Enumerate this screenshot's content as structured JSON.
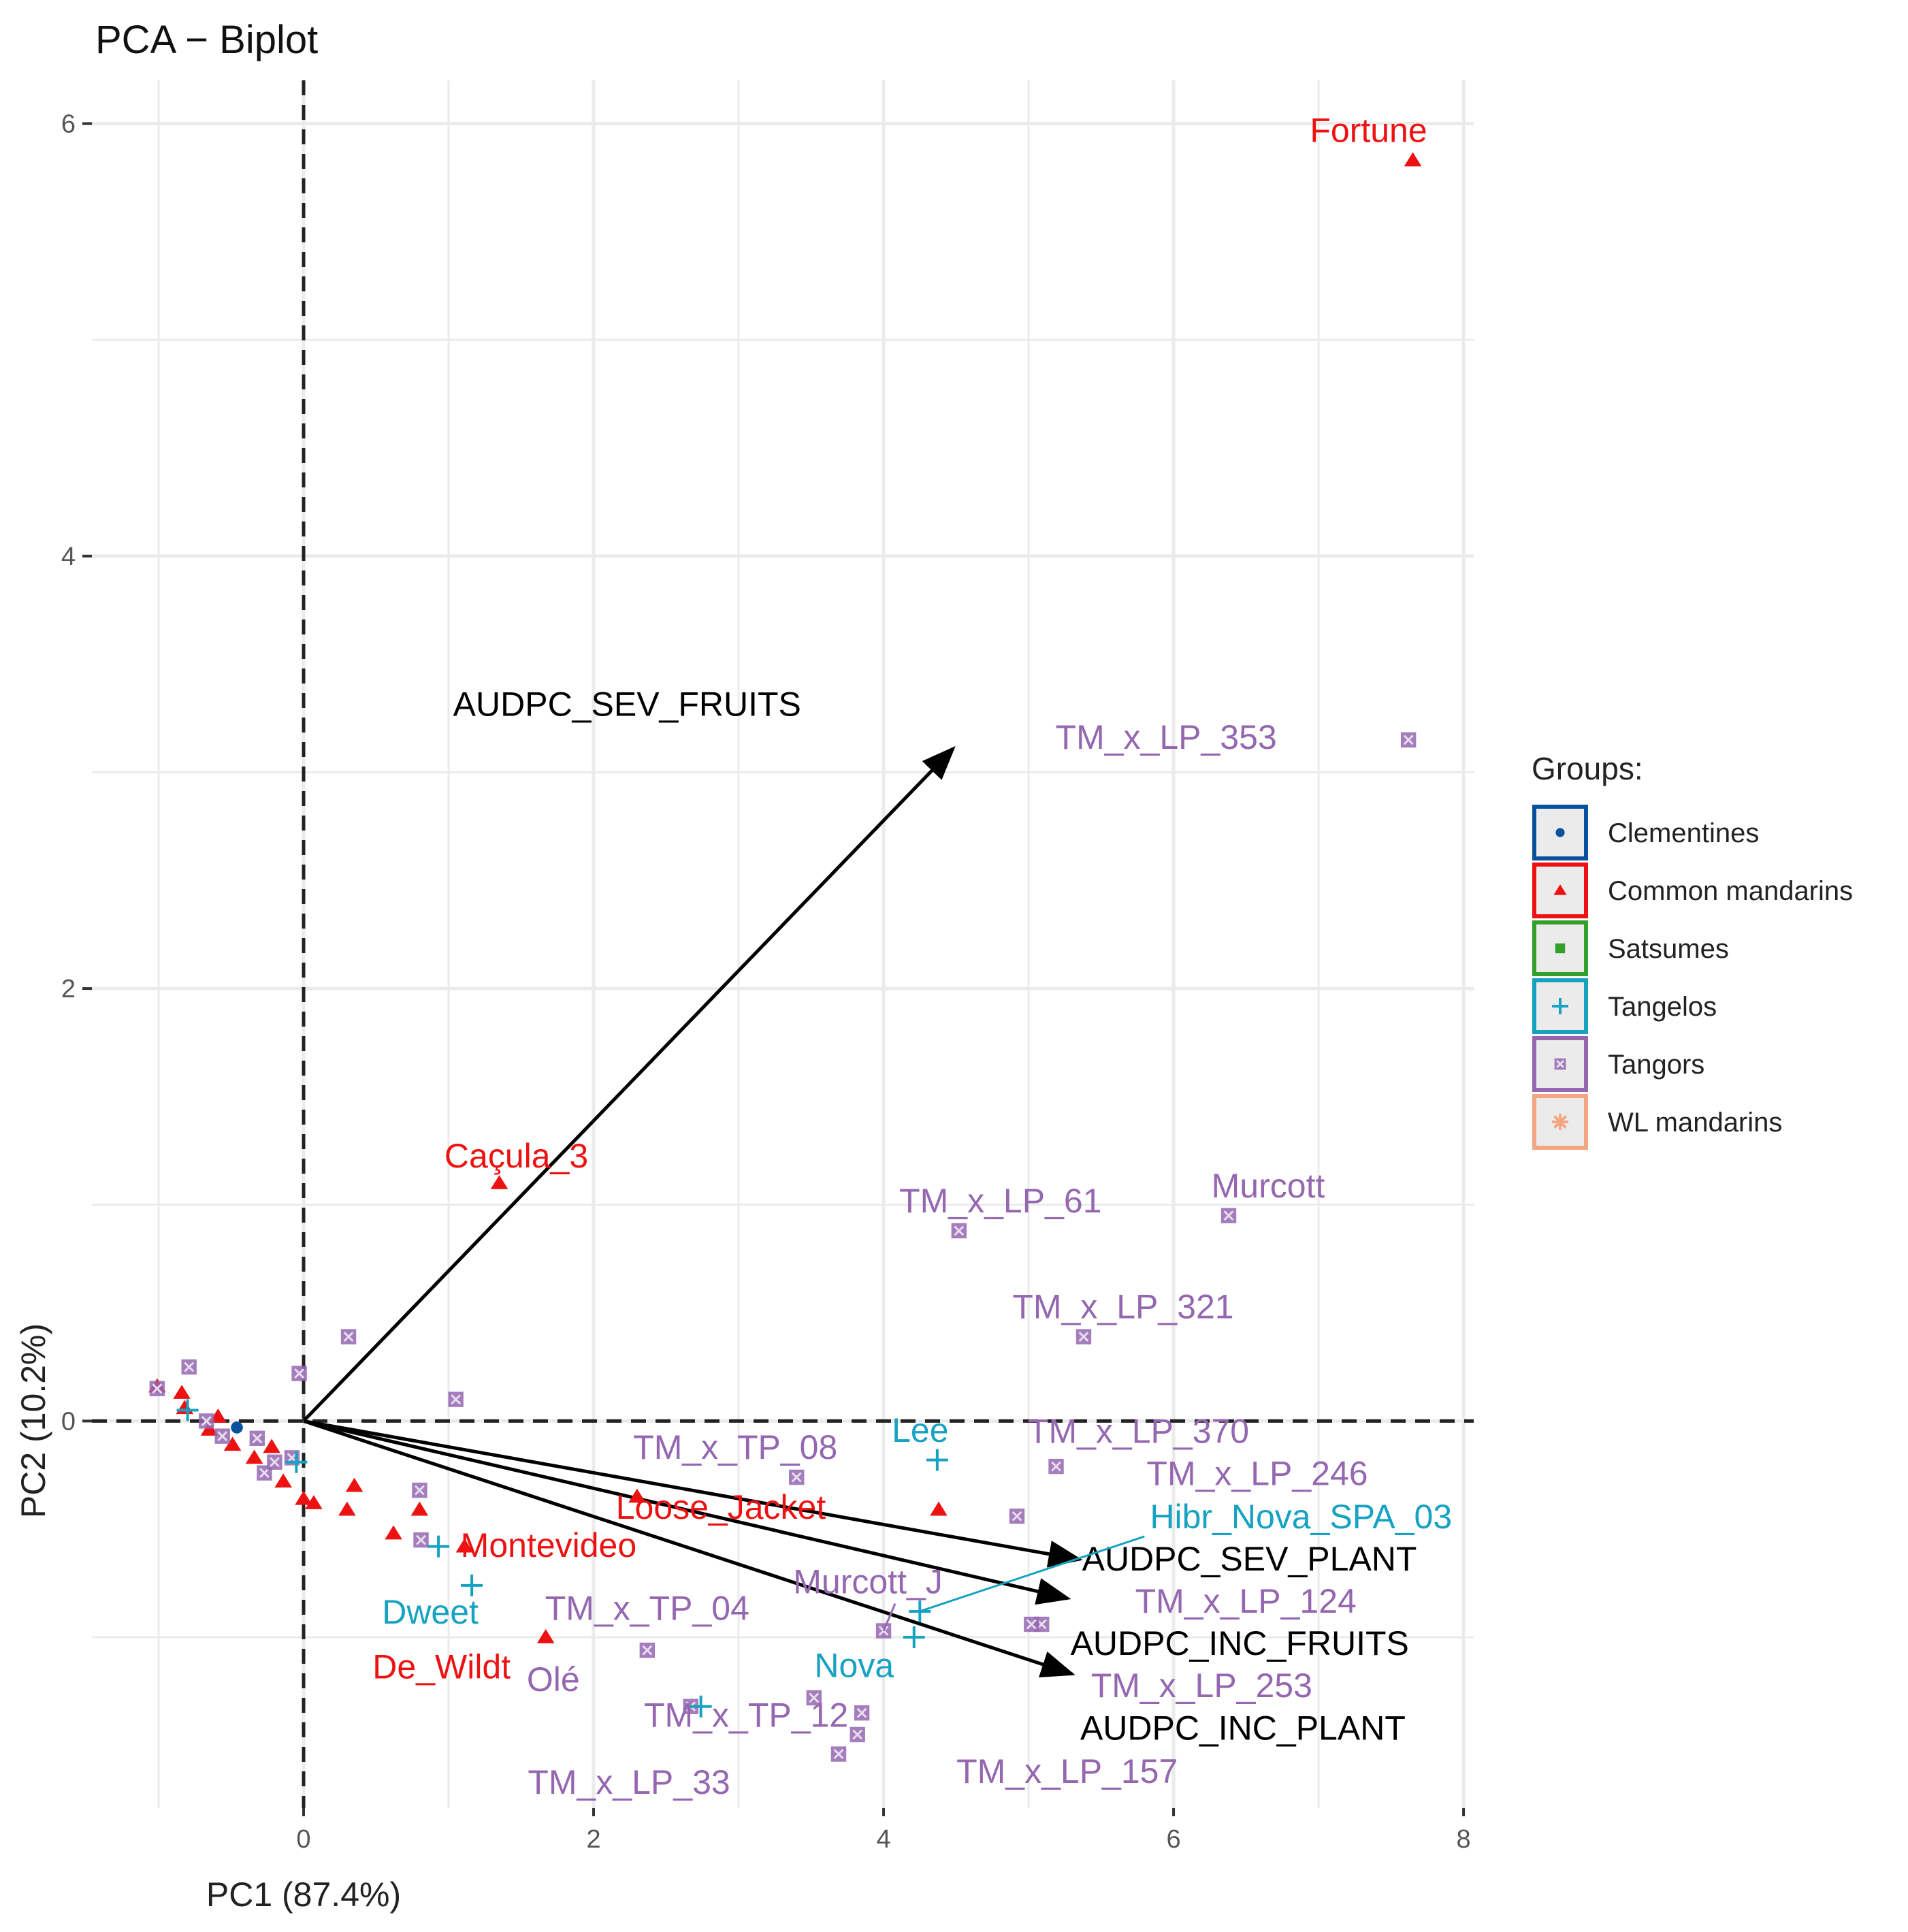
{
  "chart_data": {
    "type": "scatter",
    "title": "PCA − Biplot",
    "xlabel": "PC1 (87.4%)",
    "ylabel": "PC2 (10.2%)",
    "xlim": [
      -1.46,
      8.07
    ],
    "ylim": [
      -1.79,
      6.2
    ],
    "x_ticks": [
      0,
      2,
      4,
      6,
      8
    ],
    "y_ticks": [
      0,
      2,
      4,
      6
    ],
    "grid": true,
    "reference_lines": {
      "x": 0,
      "y": 0,
      "style": "dashed"
    },
    "legend": {
      "title": "Groups:",
      "placement": "right",
      "entries": [
        {
          "name": "Clementines",
          "color": "#08519c",
          "shape": "circle"
        },
        {
          "name": "Common mandarins",
          "color": "#ee1111",
          "shape": "triangle"
        },
        {
          "name": "Satsumes",
          "color": "#33a02c",
          "shape": "square"
        },
        {
          "name": "Tangelos",
          "color": "#17a2c2",
          "shape": "plus"
        },
        {
          "name": "Tangors",
          "color": "#9467b0",
          "shape": "square-cross"
        },
        {
          "name": "WL mandarins",
          "color": "#f4a582",
          "shape": "asterisk"
        }
      ]
    },
    "points": [
      {
        "label": "Fortune",
        "group": "Common mandarins",
        "x": 7.65,
        "y": 5.83
      },
      {
        "label": "TM_x_LP_353",
        "group": "Tangors",
        "x": 7.62,
        "y": 3.15
      },
      {
        "label": "Caçula_3",
        "group": "Common mandarins",
        "x": 1.35,
        "y": 1.1
      },
      {
        "label": "TM_x_LP_61",
        "group": "Tangors",
        "x": 4.52,
        "y": 0.88
      },
      {
        "label": "Murcott",
        "group": "Tangors",
        "x": 6.38,
        "y": 0.95
      },
      {
        "label": "TM_x_LP_321",
        "group": "Tangors",
        "x": 5.38,
        "y": 0.39
      },
      {
        "label": "TM_x_TP_08",
        "group": "Tangors",
        "x": 3.4,
        "y": -0.26
      },
      {
        "label": "Lee",
        "group": "Tangelos",
        "x": 4.37,
        "y": -0.18
      },
      {
        "label": "TM_x_LP_370",
        "group": "Tangors",
        "x": 5.19,
        "y": -0.21
      },
      {
        "label": "Loose_Jacket",
        "group": "Common mandarins",
        "x": 4.38,
        "y": -0.41
      },
      {
        "label": "TM_x_LP_246",
        "group": "Tangors",
        "x": 4.92,
        "y": -0.44
      },
      {
        "label": "Hibr_Nova_SPA_03",
        "group": "Tangelos",
        "x": 4.25,
        "y": -0.88
      },
      {
        "label": "Montevideo",
        "group": "Common mandarins",
        "x": 2.3,
        "y": -0.35
      },
      {
        "label": "Murcott_J",
        "group": "Tangors",
        "x": 4.0,
        "y": -0.97
      },
      {
        "label": "TM_x_LP_124",
        "group": "Tangors",
        "x": 5.09,
        "y": -0.94
      },
      {
        "label": "TM_x_LP_253",
        "group": "Tangors",
        "x": 5.02,
        "y": -0.94
      },
      {
        "label": "Dweet",
        "group": "Tangelos",
        "x": 1.16,
        "y": -0.76
      },
      {
        "label": "TM_x_TP_04",
        "group": "Tangors",
        "x": 2.37,
        "y": -1.06
      },
      {
        "label": "De_Wildt",
        "group": "Common mandarins",
        "x": 1.67,
        "y": -1.0
      },
      {
        "label": "Olé",
        "group": "Tangors",
        "x": 2.67,
        "y": -1.32
      },
      {
        "label": "Nova",
        "group": "Tangelos",
        "x": 4.21,
        "y": -1.0
      },
      {
        "label": "TM_x_TP_12",
        "group": "Tangors",
        "x": 3.85,
        "y": -1.35
      },
      {
        "label": "TM_x_LP_33",
        "group": "Tangors",
        "x": 3.69,
        "y": -1.54
      },
      {
        "label": "TM_x_LP_157",
        "group": "Tangors",
        "x": 3.82,
        "y": -1.45
      },
      {
        "label": "",
        "group": "Tangors",
        "x": 3.52,
        "y": -1.28
      },
      {
        "label": "",
        "group": "Tangelos",
        "x": 2.74,
        "y": -1.32
      },
      {
        "label": "",
        "group": "Common mandarins",
        "x": 1.11,
        "y": -0.58
      },
      {
        "label": "",
        "group": "Common mandarins",
        "x": 0.8,
        "y": -0.41
      },
      {
        "label": "",
        "group": "Common mandarins",
        "x": 0.62,
        "y": -0.52
      },
      {
        "label": "",
        "group": "Common mandarins",
        "x": 0.35,
        "y": -0.3
      },
      {
        "label": "",
        "group": "Common mandarins",
        "x": 0.3,
        "y": -0.41
      },
      {
        "label": "",
        "group": "Common mandarins",
        "x": 0.07,
        "y": -0.38
      },
      {
        "label": "",
        "group": "Common mandarins",
        "x": 0.0,
        "y": -0.36
      },
      {
        "label": "",
        "group": "Common mandarins",
        "x": -0.14,
        "y": -0.28
      },
      {
        "label": "",
        "group": "Common mandarins",
        "x": -0.34,
        "y": -0.17
      },
      {
        "label": "",
        "group": "Common mandarins",
        "x": -0.22,
        "y": -0.12
      },
      {
        "label": "",
        "group": "Common mandarins",
        "x": -0.49,
        "y": -0.11
      },
      {
        "label": "",
        "group": "Common mandarins",
        "x": -0.59,
        "y": 0.02
      },
      {
        "label": "",
        "group": "Common mandarins",
        "x": -0.65,
        "y": -0.04
      },
      {
        "label": "",
        "group": "Common mandarins",
        "x": -0.84,
        "y": 0.13
      },
      {
        "label": "",
        "group": "Common mandarins",
        "x": -1.01,
        "y": 0.16
      },
      {
        "label": "",
        "group": "Common mandarins",
        "x": -0.82,
        "y": 0.06
      },
      {
        "label": "",
        "group": "Tangors",
        "x": 0.31,
        "y": 0.39
      },
      {
        "label": "",
        "group": "Tangors",
        "x": -0.03,
        "y": 0.22
      },
      {
        "label": "",
        "group": "Tangors",
        "x": 1.05,
        "y": 0.1
      },
      {
        "label": "",
        "group": "Tangors",
        "x": -0.79,
        "y": 0.25
      },
      {
        "label": "",
        "group": "Tangors",
        "x": 0.8,
        "y": -0.32
      },
      {
        "label": "",
        "group": "Tangors",
        "x": 0.81,
        "y": -0.55
      },
      {
        "label": "",
        "group": "Tangors",
        "x": -0.32,
        "y": -0.08
      },
      {
        "label": "",
        "group": "Tangors",
        "x": -0.08,
        "y": -0.17
      },
      {
        "label": "",
        "group": "Tangors",
        "x": -0.27,
        "y": -0.24
      },
      {
        "label": "",
        "group": "Tangors",
        "x": -0.67,
        "y": 0.0
      },
      {
        "label": "",
        "group": "Tangors",
        "x": -1.01,
        "y": 0.15
      },
      {
        "label": "",
        "group": "Tangors",
        "x": -0.56,
        "y": -0.07
      },
      {
        "label": "",
        "group": "Tangors",
        "x": -0.2,
        "y": -0.19
      },
      {
        "label": "",
        "group": "Tangelos",
        "x": 0.93,
        "y": -0.58
      },
      {
        "label": "",
        "group": "Tangelos",
        "x": -0.05,
        "y": -0.19
      },
      {
        "label": "",
        "group": "Tangelos",
        "x": -0.8,
        "y": 0.05
      },
      {
        "label": "",
        "group": "Clementines",
        "x": -0.46,
        "y": -0.03
      }
    ],
    "variables": [
      {
        "name": "AUDPC_SEV_FRUITS",
        "x": 4.48,
        "y": 3.11
      },
      {
        "name": "AUDPC_SEV_PLANT",
        "x": 5.35,
        "y": -0.64
      },
      {
        "name": "AUDPC_INC_FRUITS",
        "x": 5.27,
        "y": -0.82
      },
      {
        "name": "AUDPC_INC_PLANT",
        "x": 5.3,
        "y": -1.17
      }
    ]
  }
}
